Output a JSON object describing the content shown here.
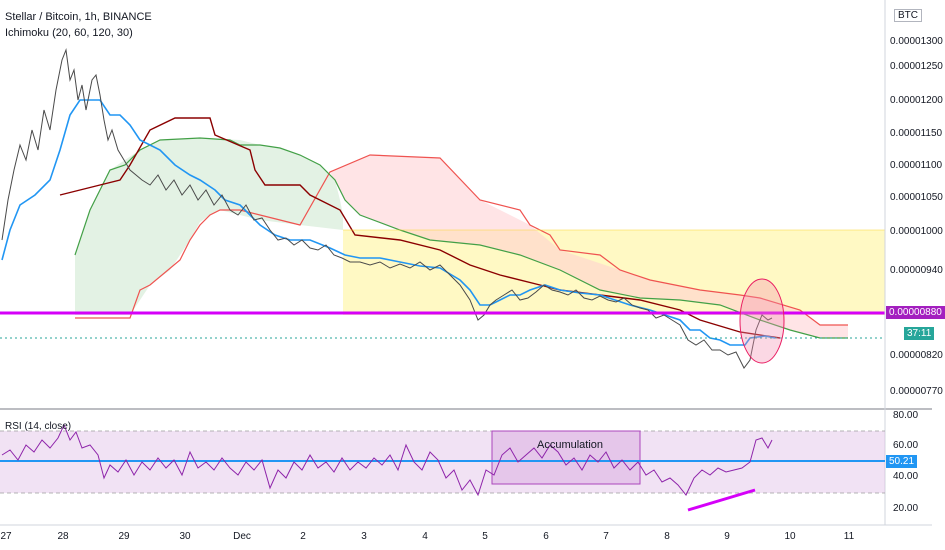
{
  "header": {
    "title": "Stellar / Bitcoin, 1h, BINANCE",
    "ichimoku_label": "Ichimoku (20, 60, 120, 30)",
    "rsi_label": "RSI (14, close)",
    "currency": "BTC"
  },
  "price_axis": {
    "ticks": [
      "0.00001300",
      "0.00001250",
      "0.00001200",
      "0.00001150",
      "0.00001100",
      "0.00001050",
      "0.00001000",
      "0.00000940",
      "0.00000880",
      "0.00000820",
      "0.00000770"
    ],
    "current_price": "0.00000880",
    "countdown": "37:11"
  },
  "rsi_axis": {
    "ticks": [
      "80.00",
      "60.00",
      "40.00",
      "20.00"
    ],
    "current_value": "50.21"
  },
  "time_axis": {
    "ticks": [
      "27",
      "28",
      "29",
      "30",
      "Dec",
      "2",
      "3",
      "4",
      "5",
      "6",
      "7",
      "8",
      "9",
      "10",
      "11"
    ]
  },
  "annotations": {
    "accumulation": "Accumulation"
  },
  "colors": {
    "tenkan": "#2196f3",
    "kijun": "#8b0000",
    "span_a": "#43a047",
    "span_b": "#ef5350",
    "support_line": "#d500f9",
    "rsi_line": "#8e24aa",
    "rsi_band": "#e1bee7",
    "yellow_zone": "#fff59d"
  }
}
